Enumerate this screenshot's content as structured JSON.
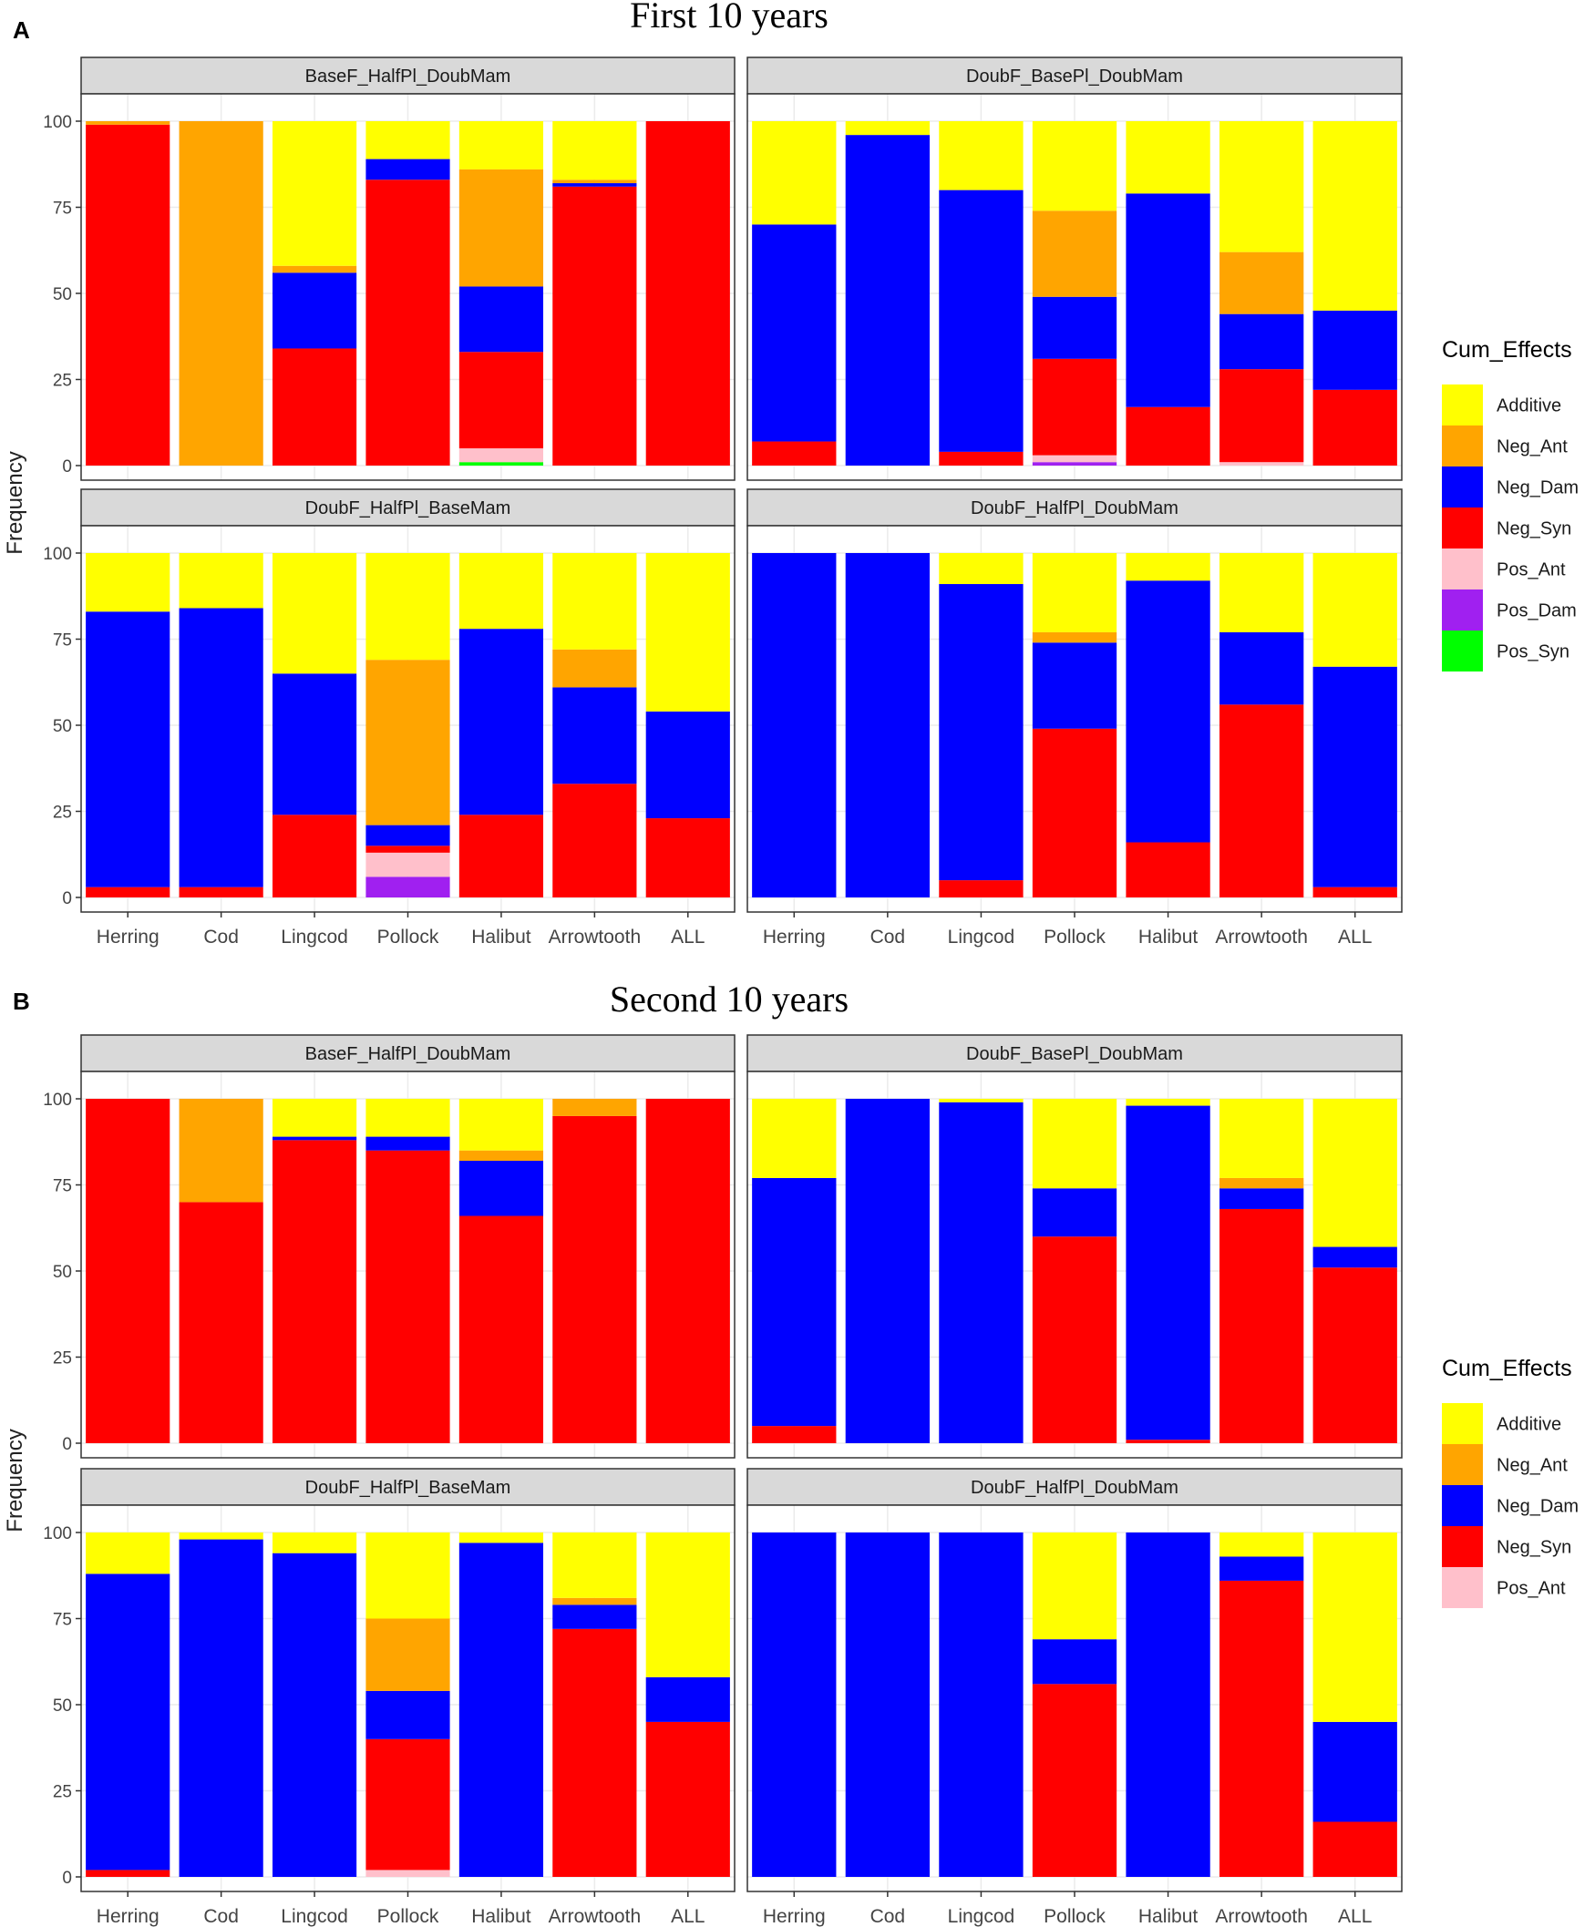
{
  "colors": {
    "Additive": "#ffff00",
    "Neg_Ant": "#ffa500",
    "Neg_Dam": "#0000ff",
    "Neg_Syn": "#ff0000",
    "Pos_Ant": "#ffc0cb",
    "Pos_Dam": "#a020f0",
    "Pos_Syn": "#00ff00"
  },
  "chart_data": [
    {
      "type": "bar",
      "stacked": true,
      "panel_letter": "A",
      "title": "First 10 years",
      "ylabel": "Frequency",
      "xlabel": "",
      "ylim": [
        0,
        100
      ],
      "yticks": [
        "0",
        "25",
        "50",
        "75",
        "100"
      ],
      "categories": [
        "Herring",
        "Cod",
        "Lingcod",
        "Pollock",
        "Halibut",
        "Arrowtooth",
        "ALL"
      ],
      "legend": {
        "title": "Cum_Effects",
        "entries": [
          "Additive",
          "Neg_Ant",
          "Neg_Dam",
          "Neg_Syn",
          "Pos_Ant",
          "Pos_Dam",
          "Pos_Syn"
        ],
        "position": "right"
      },
      "facets": [
        {
          "label": "BaseF_HalfPl_DoubMam",
          "series": [
            {
              "name": "Pos_Syn",
              "values": [
                0,
                0,
                0,
                0,
                1,
                0,
                0
              ]
            },
            {
              "name": "Pos_Dam",
              "values": [
                0,
                0,
                0,
                0,
                0,
                0,
                0
              ]
            },
            {
              "name": "Pos_Ant",
              "values": [
                0,
                0,
                0,
                0,
                4,
                0,
                0
              ]
            },
            {
              "name": "Neg_Syn",
              "values": [
                99,
                0,
                34,
                83,
                28,
                81,
                100
              ]
            },
            {
              "name": "Neg_Dam",
              "values": [
                0,
                0,
                22,
                6,
                19,
                1,
                0
              ]
            },
            {
              "name": "Neg_Ant",
              "values": [
                1,
                100,
                2,
                0,
                34,
                1,
                0
              ]
            },
            {
              "name": "Additive",
              "values": [
                0,
                0,
                42,
                11,
                14,
                17,
                0
              ]
            }
          ]
        },
        {
          "label": "DoubF_BasePl_DoubMam",
          "series": [
            {
              "name": "Pos_Syn",
              "values": [
                0,
                0,
                0,
                0,
                0,
                0,
                0
              ]
            },
            {
              "name": "Pos_Dam",
              "values": [
                0,
                0,
                0,
                1,
                0,
                0,
                0
              ]
            },
            {
              "name": "Pos_Ant",
              "values": [
                0,
                0,
                0,
                2,
                0,
                1,
                0
              ]
            },
            {
              "name": "Neg_Syn",
              "values": [
                7,
                0,
                4,
                28,
                17,
                27,
                22
              ]
            },
            {
              "name": "Neg_Dam",
              "values": [
                63,
                96,
                76,
                18,
                62,
                16,
                23
              ]
            },
            {
              "name": "Neg_Ant",
              "values": [
                0,
                0,
                0,
                25,
                0,
                18,
                0
              ]
            },
            {
              "name": "Additive",
              "values": [
                30,
                4,
                20,
                26,
                21,
                38,
                55
              ]
            }
          ]
        },
        {
          "label": "DoubF_HalfPl_BaseMam",
          "series": [
            {
              "name": "Pos_Syn",
              "values": [
                0,
                0,
                0,
                0,
                0,
                0,
                0
              ]
            },
            {
              "name": "Pos_Dam",
              "values": [
                0,
                0,
                0,
                6,
                0,
                0,
                0
              ]
            },
            {
              "name": "Pos_Ant",
              "values": [
                0,
                0,
                0,
                7,
                0,
                0,
                0
              ]
            },
            {
              "name": "Neg_Syn",
              "values": [
                3,
                3,
                24,
                2,
                24,
                33,
                23
              ]
            },
            {
              "name": "Neg_Dam",
              "values": [
                80,
                81,
                41,
                6,
                54,
                28,
                31
              ]
            },
            {
              "name": "Neg_Ant",
              "values": [
                0,
                0,
                0,
                48,
                0,
                11,
                0
              ]
            },
            {
              "name": "Additive",
              "values": [
                17,
                16,
                35,
                31,
                22,
                28,
                46
              ]
            }
          ]
        },
        {
          "label": "DoubF_HalfPl_DoubMam",
          "series": [
            {
              "name": "Pos_Syn",
              "values": [
                0,
                0,
                0,
                0,
                0,
                0,
                0
              ]
            },
            {
              "name": "Pos_Dam",
              "values": [
                0,
                0,
                0,
                0,
                0,
                0,
                0
              ]
            },
            {
              "name": "Pos_Ant",
              "values": [
                0,
                0,
                0,
                0,
                0,
                0,
                0
              ]
            },
            {
              "name": "Neg_Syn",
              "values": [
                0,
                0,
                5,
                49,
                16,
                56,
                3
              ]
            },
            {
              "name": "Neg_Dam",
              "values": [
                100,
                100,
                86,
                25,
                76,
                21,
                64
              ]
            },
            {
              "name": "Neg_Ant",
              "values": [
                0,
                0,
                0,
                3,
                0,
                0,
                0
              ]
            },
            {
              "name": "Additive",
              "values": [
                0,
                0,
                9,
                23,
                8,
                23,
                33
              ]
            }
          ]
        }
      ]
    },
    {
      "type": "bar",
      "stacked": true,
      "panel_letter": "B",
      "title": "Second 10 years",
      "ylabel": "Frequency",
      "xlabel": "",
      "ylim": [
        0,
        100
      ],
      "yticks": [
        "0",
        "25",
        "50",
        "75",
        "100"
      ],
      "categories": [
        "Herring",
        "Cod",
        "Lingcod",
        "Pollock",
        "Halibut",
        "Arrowtooth",
        "ALL"
      ],
      "legend": {
        "title": "Cum_Effects",
        "entries": [
          "Additive",
          "Neg_Ant",
          "Neg_Dam",
          "Neg_Syn",
          "Pos_Ant"
        ],
        "position": "right"
      },
      "facets": [
        {
          "label": "BaseF_HalfPl_DoubMam",
          "series": [
            {
              "name": "Pos_Ant",
              "values": [
                0,
                0,
                0,
                0,
                0,
                0,
                0
              ]
            },
            {
              "name": "Neg_Syn",
              "values": [
                100,
                70,
                88,
                85,
                66,
                95,
                100
              ]
            },
            {
              "name": "Neg_Dam",
              "values": [
                0,
                0,
                1,
                4,
                16,
                0,
                0
              ]
            },
            {
              "name": "Neg_Ant",
              "values": [
                0,
                30,
                0,
                0,
                3,
                5,
                0
              ]
            },
            {
              "name": "Additive",
              "values": [
                0,
                0,
                11,
                11,
                15,
                0,
                0
              ]
            }
          ]
        },
        {
          "label": "DoubF_BasePl_DoubMam",
          "series": [
            {
              "name": "Pos_Ant",
              "values": [
                0,
                0,
                0,
                0,
                0,
                0,
                0
              ]
            },
            {
              "name": "Neg_Syn",
              "values": [
                5,
                0,
                0,
                60,
                1,
                68,
                51
              ]
            },
            {
              "name": "Neg_Dam",
              "values": [
                72,
                100,
                99,
                14,
                97,
                6,
                6
              ]
            },
            {
              "name": "Neg_Ant",
              "values": [
                0,
                0,
                0,
                0,
                0,
                3,
                0
              ]
            },
            {
              "name": "Additive",
              "values": [
                23,
                0,
                1,
                26,
                2,
                23,
                43
              ]
            }
          ]
        },
        {
          "label": "DoubF_HalfPl_BaseMam",
          "series": [
            {
              "name": "Pos_Ant",
              "values": [
                0,
                0,
                0,
                2,
                0,
                0,
                0
              ]
            },
            {
              "name": "Neg_Syn",
              "values": [
                2,
                0,
                0,
                38,
                0,
                72,
                45
              ]
            },
            {
              "name": "Neg_Dam",
              "values": [
                86,
                98,
                94,
                14,
                97,
                7,
                13
              ]
            },
            {
              "name": "Neg_Ant",
              "values": [
                0,
                0,
                0,
                21,
                0,
                2,
                0
              ]
            },
            {
              "name": "Additive",
              "values": [
                12,
                2,
                6,
                25,
                3,
                19,
                42
              ]
            }
          ]
        },
        {
          "label": "DoubF_HalfPl_DoubMam",
          "series": [
            {
              "name": "Pos_Ant",
              "values": [
                0,
                0,
                0,
                0,
                0,
                0,
                0
              ]
            },
            {
              "name": "Neg_Syn",
              "values": [
                0,
                0,
                0,
                56,
                0,
                86,
                16
              ]
            },
            {
              "name": "Neg_Dam",
              "values": [
                100,
                100,
                100,
                13,
                100,
                7,
                29
              ]
            },
            {
              "name": "Neg_Ant",
              "values": [
                0,
                0,
                0,
                0,
                0,
                0,
                0
              ]
            },
            {
              "name": "Additive",
              "values": [
                0,
                0,
                0,
                31,
                0,
                7,
                55
              ]
            }
          ]
        }
      ]
    }
  ]
}
